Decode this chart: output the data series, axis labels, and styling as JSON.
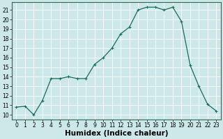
{
  "x": [
    0,
    1,
    2,
    3,
    4,
    5,
    6,
    7,
    8,
    9,
    10,
    11,
    12,
    13,
    14,
    15,
    16,
    17,
    18,
    19,
    20,
    21,
    22,
    23
  ],
  "y": [
    10.8,
    10.9,
    10.0,
    11.5,
    13.8,
    13.8,
    14.0,
    13.8,
    13.8,
    15.3,
    16.0,
    17.0,
    18.5,
    19.2,
    21.0,
    21.3,
    21.3,
    21.0,
    21.3,
    19.8,
    15.2,
    13.0,
    11.1,
    10.4
  ],
  "line_color": "#1a6b5a",
  "marker": "+",
  "marker_size": 3,
  "marker_lw": 0.8,
  "line_width": 0.9,
  "bg_color": "#cce8e8",
  "grid_major_color": "#ffffff",
  "grid_minor_color": "#b8d8d8",
  "xlabel": "Humidex (Indice chaleur)",
  "xlim": [
    -0.5,
    23.5
  ],
  "ylim": [
    9.5,
    21.8
  ],
  "yticks": [
    10,
    11,
    12,
    13,
    14,
    15,
    16,
    17,
    18,
    19,
    20,
    21
  ],
  "xticks": [
    0,
    1,
    2,
    3,
    4,
    5,
    6,
    7,
    8,
    9,
    10,
    11,
    12,
    13,
    14,
    15,
    16,
    17,
    18,
    19,
    20,
    21,
    22,
    23
  ],
  "tick_label_fontsize": 5.5,
  "xlabel_fontsize": 7.5,
  "spine_color": "#336655"
}
